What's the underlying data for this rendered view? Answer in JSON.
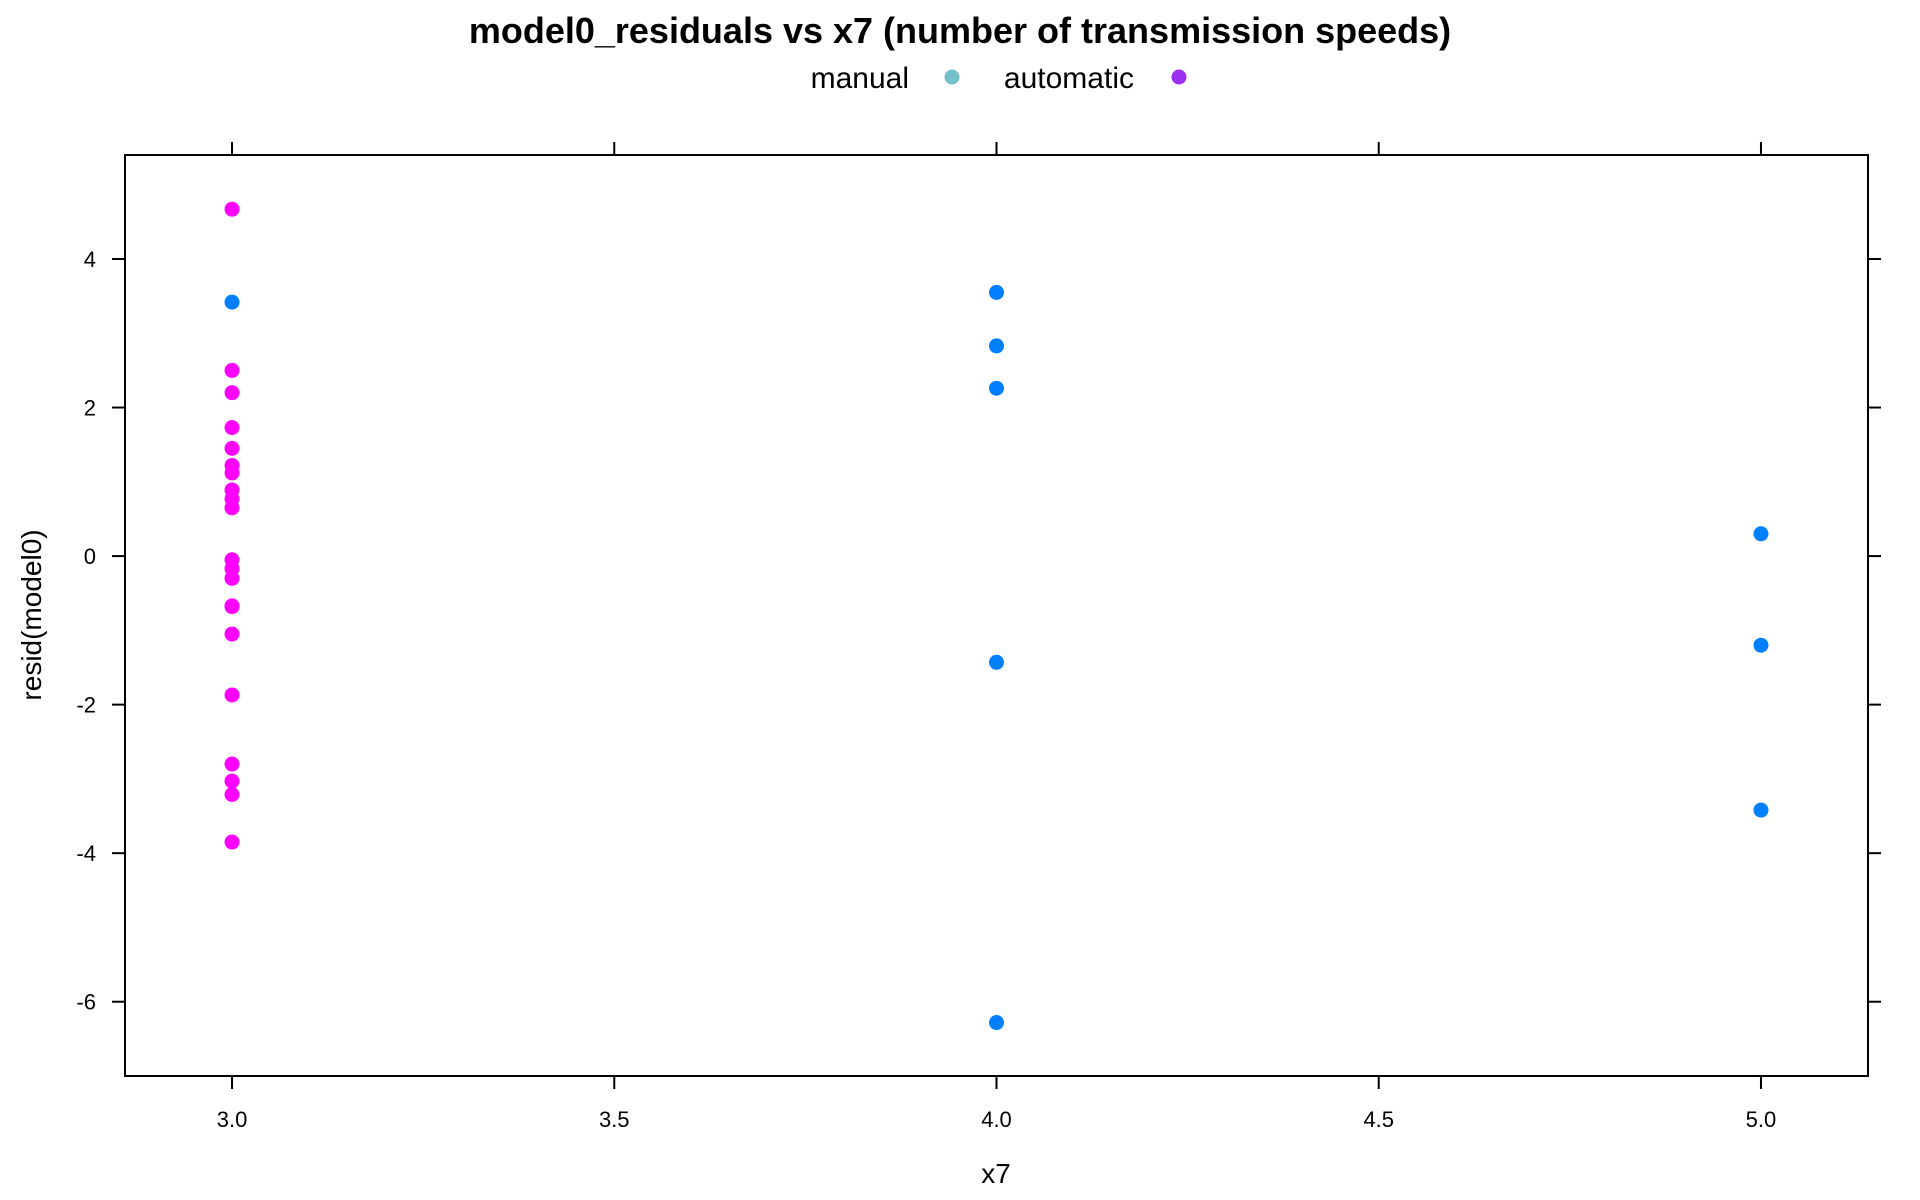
{
  "chart_data": {
    "type": "scatter",
    "title": "model0_residuals vs x7 (number of transmission speeds)",
    "xlabel": "x7",
    "ylabel": "resid(model0)",
    "xlim": [
      2.86,
      5.14
    ],
    "ylim": [
      -7.0,
      5.4
    ],
    "xticks": [
      3.0,
      3.5,
      4.0,
      4.5,
      5.0
    ],
    "xtick_labels": [
      "3.0",
      "3.5",
      "4.0",
      "4.5",
      "5.0"
    ],
    "yticks": [
      -6,
      -4,
      -2,
      0,
      2,
      4
    ],
    "ytick_labels": [
      "-6",
      "-4",
      "-2",
      "0",
      "2",
      "4"
    ],
    "legend": {
      "placement": "top",
      "entries": [
        {
          "label": "manual",
          "color": "#74c1cc"
        },
        {
          "label": "automatic",
          "color": "#9b30f0"
        }
      ]
    },
    "series": [
      {
        "color": "#ff00ff",
        "points": [
          [
            3.0,
            4.67
          ],
          [
            3.0,
            2.5
          ],
          [
            3.0,
            2.2
          ],
          [
            3.0,
            1.73
          ],
          [
            3.0,
            1.45
          ],
          [
            3.0,
            1.22
          ],
          [
            3.0,
            1.12
          ],
          [
            3.0,
            0.89
          ],
          [
            3.0,
            0.77
          ],
          [
            3.0,
            0.65
          ],
          [
            3.0,
            -0.05
          ],
          [
            3.0,
            -0.17
          ],
          [
            3.0,
            -0.3
          ],
          [
            3.0,
            -0.68
          ],
          [
            3.0,
            -0.67
          ],
          [
            3.0,
            -1.05
          ],
          [
            3.0,
            -1.87
          ],
          [
            3.0,
            -2.8
          ],
          [
            3.0,
            -3.03
          ],
          [
            3.0,
            -3.21
          ],
          [
            3.0,
            -3.85
          ]
        ]
      },
      {
        "color": "#0080ff",
        "points": [
          [
            3.0,
            3.42
          ],
          [
            4.0,
            3.55
          ],
          [
            4.0,
            2.83
          ],
          [
            4.0,
            2.26
          ],
          [
            4.0,
            -1.43
          ],
          [
            4.0,
            -6.28
          ],
          [
            5.0,
            0.3
          ],
          [
            5.0,
            -1.2
          ],
          [
            5.0,
            -3.42
          ]
        ]
      }
    ]
  }
}
